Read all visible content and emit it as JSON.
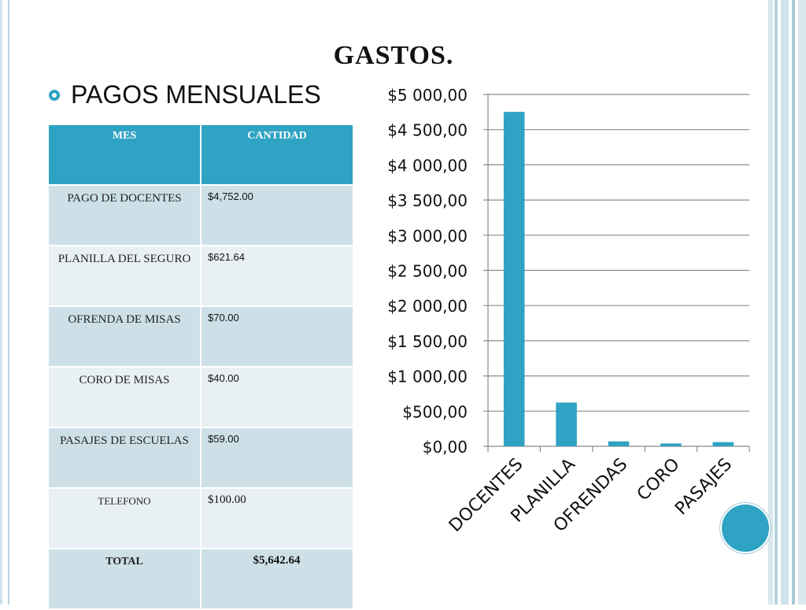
{
  "slide": {
    "title": "GASTOS.",
    "bullet": "PAGOS MENSUALES"
  },
  "colors": {
    "accent": "#2ea3c4",
    "row_dark": "#cde0e8",
    "row_light": "#e8f0f4"
  },
  "table": {
    "headers": [
      "MES",
      "CANTIDAD"
    ],
    "rows": [
      {
        "mes": "PAGO DE DOCENTES",
        "cantidad": "$4,752.00"
      },
      {
        "mes": "PLANILLA DEL SEGURO",
        "cantidad": "$621.64"
      },
      {
        "mes": "OFRENDA DE MISAS",
        "cantidad": "$70.00"
      },
      {
        "mes": "CORO DE MISAS",
        "cantidad": "$40.00"
      },
      {
        "mes": "PASAJES DE ESCUELAS",
        "cantidad": "$59.00"
      },
      {
        "mes": "TELEFONO",
        "cantidad": "$100.00"
      }
    ],
    "total_label": "TOTAL",
    "total_value": "$5,642.64"
  },
  "chart_data": {
    "type": "bar",
    "categories": [
      "DOCENTES",
      "PLANILLA",
      "OFRENDAS",
      "CORO",
      "PASAJES"
    ],
    "values": [
      4752,
      621.64,
      70,
      40,
      59
    ],
    "ylim": [
      0,
      5000
    ],
    "yticks": [
      0,
      500,
      1000,
      1500,
      2000,
      2500,
      3000,
      3500,
      4000,
      4500,
      5000
    ],
    "ytick_labels": [
      "$0,00",
      "$500,00",
      "$1 000,00",
      "$1 500,00",
      "$2 000,00",
      "$2 500,00",
      "$3 000,00",
      "$3 500,00",
      "$4 000,00",
      "$4 500,00",
      "$5 000,00"
    ],
    "grid": true,
    "legend": "none",
    "bar_color": "#2ea3c4"
  }
}
